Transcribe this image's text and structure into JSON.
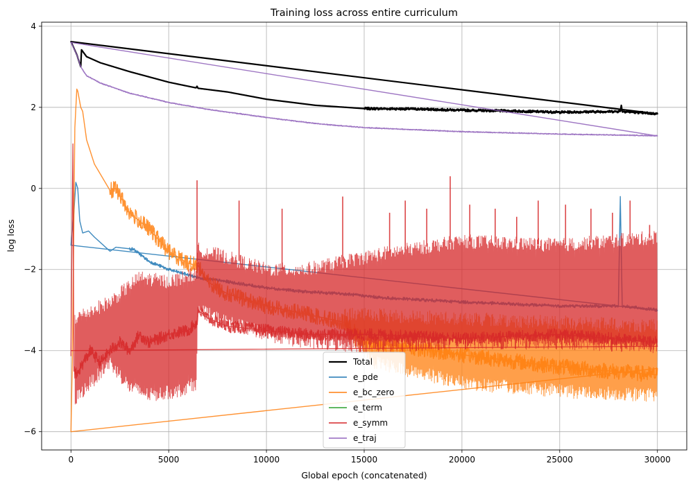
{
  "chart_data": {
    "type": "line",
    "title": "Training loss across entire curriculum",
    "xlabel": "Global epoch (concatenated)",
    "ylabel": "log loss",
    "xlim": [
      -1500,
      31500
    ],
    "ylim": [
      -6.45,
      4.1
    ],
    "xticks": [
      0,
      5000,
      10000,
      15000,
      20000,
      25000,
      30000
    ],
    "yticks": [
      -6,
      -4,
      -2,
      0,
      2,
      4
    ],
    "grid": true,
    "legend_position": "lower-center",
    "series": [
      {
        "name": "Total",
        "color": "#000000",
        "width": 2.2,
        "opacity": 1,
        "noise": 0.03,
        "noiseStart": 15000,
        "points": [
          [
            0,
            3.62
          ],
          [
            300,
            3.3
          ],
          [
            500,
            3.0
          ],
          [
            540,
            3.42
          ],
          [
            800,
            3.25
          ],
          [
            1500,
            3.1
          ],
          [
            3000,
            2.88
          ],
          [
            5000,
            2.62
          ],
          [
            6400,
            2.48
          ],
          [
            6450,
            2.52
          ],
          [
            6500,
            2.47
          ],
          [
            8000,
            2.38
          ],
          [
            10000,
            2.2
          ],
          [
            12500,
            2.05
          ],
          [
            15000,
            1.97
          ],
          [
            17500,
            1.96
          ],
          [
            20000,
            1.93
          ],
          [
            22500,
            1.91
          ],
          [
            25000,
            1.88
          ],
          [
            28100,
            1.9
          ],
          [
            28150,
            2.05
          ],
          [
            28200,
            1.9
          ],
          [
            30000,
            1.84
          ]
        ]
      },
      {
        "name": "e_pde",
        "color": "#1f77b4",
        "width": 1.4,
        "opacity": 0.85,
        "noise": 0.04,
        "noiseStart": 3000,
        "points": [
          [
            0,
            -1.4
          ],
          [
            150,
            -0.6
          ],
          [
            250,
            0.15
          ],
          [
            350,
            0.0
          ],
          [
            450,
            -0.8
          ],
          [
            600,
            -1.1
          ],
          [
            900,
            -1.05
          ],
          [
            1200,
            -1.2
          ],
          [
            2000,
            -1.55
          ],
          [
            2300,
            -1.45
          ],
          [
            3200,
            -1.5
          ],
          [
            4000,
            -1.8
          ],
          [
            5000,
            -2.0
          ],
          [
            6500,
            -2.2
          ],
          [
            8000,
            -2.3
          ],
          [
            10000,
            -2.45
          ],
          [
            12000,
            -2.55
          ],
          [
            14000,
            -2.6
          ],
          [
            16000,
            -2.7
          ],
          [
            18000,
            -2.75
          ],
          [
            20000,
            -2.8
          ],
          [
            25000,
            -2.9
          ],
          [
            28000,
            -2.9
          ],
          [
            28100,
            -0.2
          ],
          [
            28200,
            -2.9
          ],
          [
            30000,
            -3.0
          ]
        ]
      },
      {
        "name": "e_bc_zero",
        "color": "#ff7f0e",
        "width": 1.4,
        "opacity": 0.85,
        "noise": 0.2,
        "noiseStart": 2000,
        "points": [
          [
            0,
            -6.0
          ],
          [
            80,
            -4.0
          ],
          [
            200,
            1.5
          ],
          [
            300,
            2.45
          ],
          [
            350,
            2.4
          ],
          [
            500,
            2.0
          ],
          [
            600,
            1.9
          ],
          [
            800,
            1.2
          ],
          [
            1200,
            0.6
          ],
          [
            2000,
            -0.05
          ],
          [
            2300,
            0.0
          ],
          [
            3000,
            -0.6
          ],
          [
            4000,
            -1.0
          ],
          [
            5000,
            -1.55
          ],
          [
            6000,
            -1.85
          ],
          [
            6500,
            -1.9
          ],
          [
            7000,
            -2.3
          ],
          [
            8000,
            -2.6
          ],
          [
            10000,
            -2.9
          ],
          [
            12000,
            -3.1
          ],
          [
            14000,
            -3.3
          ],
          [
            15000,
            -3.8
          ],
          [
            17000,
            -3.9
          ],
          [
            20000,
            -4.1
          ],
          [
            25000,
            -4.4
          ],
          [
            30000,
            -4.6
          ]
        ],
        "band": {
          "start": 14000,
          "hi": [
            [
              14000,
              -3.1
            ],
            [
              30000,
              -3.4
            ]
          ],
          "lo": [
            [
              14000,
              -3.5
            ],
            [
              15500,
              -4.3
            ],
            [
              20000,
              -4.8
            ],
            [
              25000,
              -5.0
            ],
            [
              30000,
              -5.1
            ]
          ]
        }
      },
      {
        "name": "e_term",
        "color": "#2ca02c",
        "width": 1.4,
        "opacity": 0.85,
        "noise": 0,
        "points": []
      },
      {
        "name": "e_symm",
        "color": "#d62728",
        "width": 1.3,
        "opacity": 0.85,
        "noise": 0.15,
        "noiseStart": 0,
        "points": [
          [
            0,
            -4.0
          ],
          [
            100,
            1.1
          ],
          [
            150,
            -4.5
          ],
          [
            300,
            -4.6
          ],
          [
            500,
            -4.4
          ],
          [
            1000,
            -4.0
          ],
          [
            1500,
            -4.3
          ],
          [
            2000,
            -4.0
          ],
          [
            2500,
            -3.8
          ],
          [
            3000,
            -4.0
          ],
          [
            3500,
            -3.6
          ],
          [
            4000,
            -3.8
          ],
          [
            5000,
            -3.6
          ],
          [
            6000,
            -3.5
          ],
          [
            6450,
            -3.3
          ],
          [
            6500,
            -3.0
          ],
          [
            7000,
            -3.2
          ],
          [
            8000,
            -3.4
          ],
          [
            10000,
            -3.5
          ],
          [
            12000,
            -3.6
          ],
          [
            15000,
            -3.6
          ],
          [
            20000,
            -3.7
          ],
          [
            25000,
            -3.6
          ],
          [
            30000,
            -3.8
          ]
        ],
        "band": {
          "start": 200,
          "hi": [
            [
              200,
              -3.2
            ],
            [
              2000,
              -2.8
            ],
            [
              3500,
              -2.2
            ],
            [
              5000,
              -2.3
            ],
            [
              6400,
              -2.1
            ],
            [
              6500,
              -1.5
            ],
            [
              8000,
              -1.7
            ],
            [
              10000,
              -2.0
            ],
            [
              12000,
              -2.0
            ],
            [
              14000,
              -1.8
            ],
            [
              16000,
              -1.6
            ],
            [
              20000,
              -1.3
            ],
            [
              25000,
              -1.4
            ],
            [
              30000,
              -1.2
            ]
          ],
          "lo": [
            [
              200,
              -5.2
            ],
            [
              2000,
              -4.3
            ],
            [
              3000,
              -4.9
            ],
            [
              4000,
              -5.1
            ],
            [
              5500,
              -5.0
            ],
            [
              6400,
              -4.8
            ],
            [
              6500,
              -3.0
            ],
            [
              8000,
              -3.3
            ],
            [
              10000,
              -3.6
            ],
            [
              12000,
              -3.8
            ],
            [
              15000,
              -3.9
            ],
            [
              20000,
              -3.8
            ],
            [
              25000,
              -3.8
            ],
            [
              30000,
              -3.9
            ]
          ]
        },
        "spikes": [
          [
            6450,
            0.2
          ],
          [
            8600,
            -0.3
          ],
          [
            10800,
            -0.5
          ],
          [
            13900,
            -0.2
          ],
          [
            16300,
            -0.6
          ],
          [
            17100,
            -0.3
          ],
          [
            18200,
            -0.5
          ],
          [
            19400,
            0.3
          ],
          [
            20400,
            -0.4
          ],
          [
            21700,
            -0.5
          ],
          [
            22800,
            -0.7
          ],
          [
            23900,
            -0.3
          ],
          [
            25300,
            -0.4
          ],
          [
            26600,
            -0.5
          ],
          [
            27700,
            -0.6
          ],
          [
            28600,
            -0.3
          ],
          [
            29600,
            -0.9
          ]
        ]
      },
      {
        "name": "e_traj",
        "color": "#9467bd",
        "width": 1.4,
        "opacity": 0.9,
        "noise": 0.012,
        "noiseStart": 0,
        "points": [
          [
            0,
            3.6
          ],
          [
            300,
            3.3
          ],
          [
            500,
            3.0
          ],
          [
            800,
            2.78
          ],
          [
            1500,
            2.6
          ],
          [
            3000,
            2.35
          ],
          [
            5000,
            2.12
          ],
          [
            7000,
            1.95
          ],
          [
            10000,
            1.75
          ],
          [
            12500,
            1.6
          ],
          [
            15000,
            1.5
          ],
          [
            17500,
            1.45
          ],
          [
            20000,
            1.4
          ],
          [
            22500,
            1.37
          ],
          [
            25000,
            1.34
          ],
          [
            27500,
            1.32
          ],
          [
            30000,
            1.3
          ]
        ]
      }
    ]
  }
}
